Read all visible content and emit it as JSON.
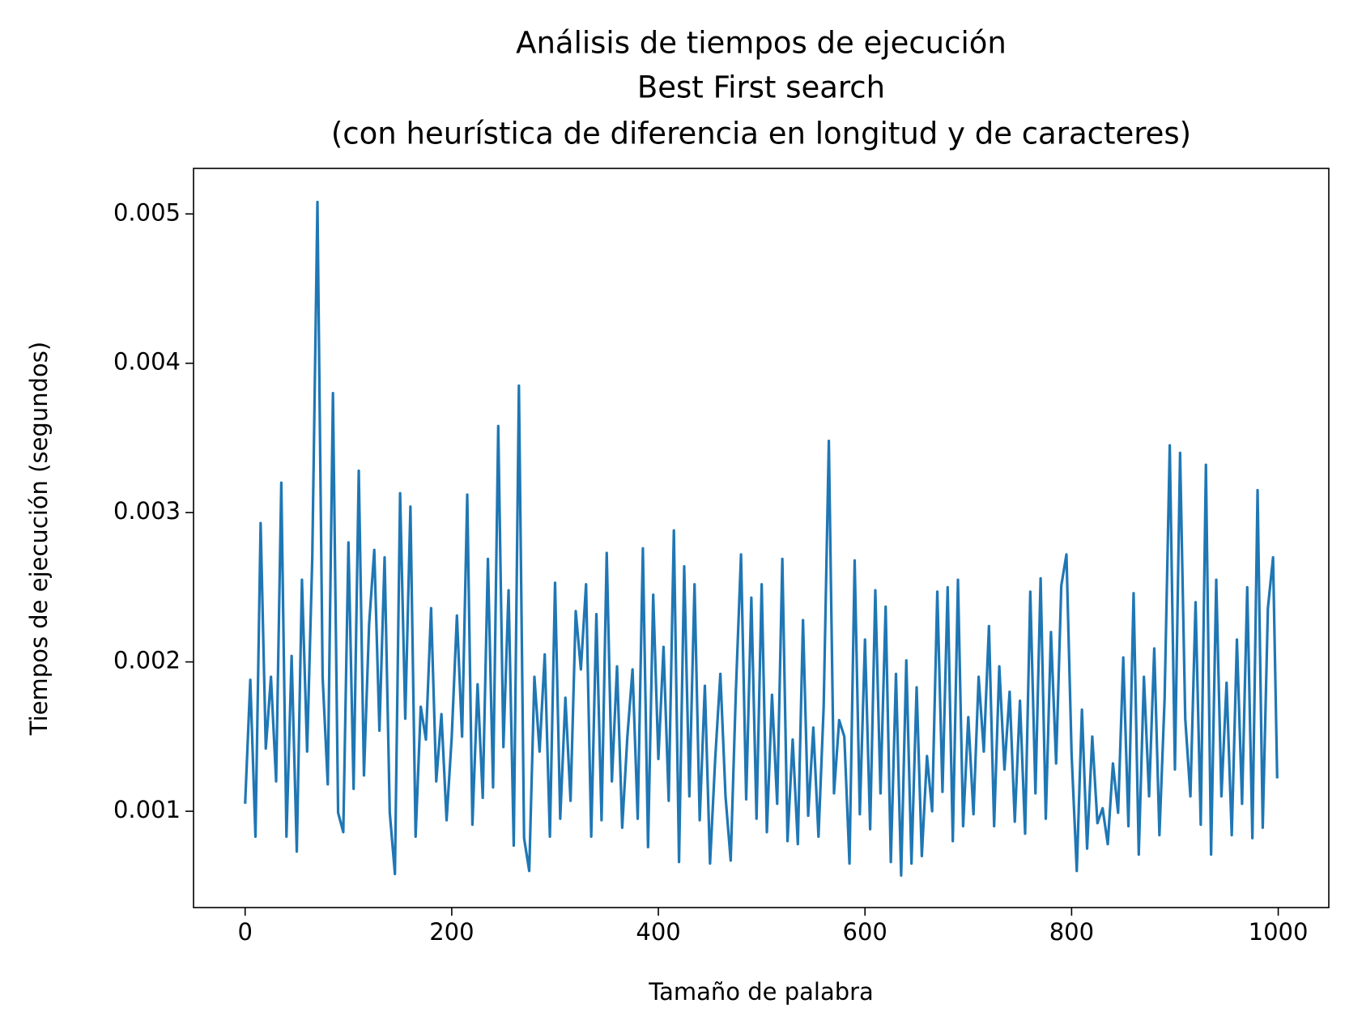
{
  "chart_data": {
    "type": "line",
    "title": [
      "Análisis de tiempos de ejecución",
      "Best First search",
      "(con heurística de diferencia en longitud y de caracteres)"
    ],
    "xlabel": "Tamaño de palabra",
    "ylabel": "Tiempos de ejecución (segundos)",
    "x": [
      0,
      5,
      10,
      15,
      20,
      25,
      30,
      35,
      40,
      45,
      50,
      55,
      60,
      65,
      70,
      75,
      80,
      85,
      90,
      95,
      100,
      105,
      110,
      115,
      120,
      125,
      130,
      135,
      140,
      145,
      150,
      155,
      160,
      165,
      170,
      175,
      180,
      185,
      190,
      195,
      200,
      205,
      210,
      215,
      220,
      225,
      230,
      235,
      240,
      245,
      250,
      255,
      260,
      265,
      270,
      275,
      280,
      285,
      290,
      295,
      300,
      305,
      310,
      315,
      320,
      325,
      330,
      335,
      340,
      345,
      350,
      355,
      360,
      365,
      370,
      375,
      380,
      385,
      390,
      395,
      400,
      405,
      410,
      415,
      420,
      425,
      430,
      435,
      440,
      445,
      450,
      455,
      460,
      465,
      470,
      475,
      480,
      485,
      490,
      495,
      500,
      505,
      510,
      515,
      520,
      525,
      530,
      535,
      540,
      545,
      550,
      555,
      560,
      565,
      570,
      575,
      580,
      585,
      590,
      595,
      600,
      605,
      610,
      615,
      620,
      625,
      630,
      635,
      640,
      645,
      650,
      655,
      660,
      665,
      670,
      675,
      680,
      685,
      690,
      695,
      700,
      705,
      710,
      715,
      720,
      725,
      730,
      735,
      740,
      745,
      750,
      755,
      760,
      765,
      770,
      775,
      780,
      785,
      790,
      795,
      800,
      805,
      810,
      815,
      820,
      825,
      830,
      835,
      840,
      845,
      850,
      855,
      860,
      865,
      870,
      875,
      880,
      885,
      890,
      895,
      900,
      905,
      910,
      915,
      920,
      925,
      930,
      935,
      940,
      945,
      950,
      955,
      960,
      965,
      970,
      975,
      980,
      985,
      990,
      995,
      999
    ],
    "series": [
      {
        "name": "tiempos",
        "color": "#1f77b4",
        "values": [
          0.00105,
          0.00188,
          0.00083,
          0.00293,
          0.00142,
          0.0019,
          0.0012,
          0.0032,
          0.00083,
          0.00204,
          0.00073,
          0.00255,
          0.0014,
          0.0027,
          0.00508,
          0.0019,
          0.00118,
          0.0038,
          0.00099,
          0.00086,
          0.0028,
          0.00115,
          0.00328,
          0.00124,
          0.00225,
          0.00275,
          0.00154,
          0.0027,
          0.00099,
          0.00058,
          0.00313,
          0.00162,
          0.00304,
          0.00083,
          0.0017,
          0.00148,
          0.00236,
          0.0012,
          0.00165,
          0.00094,
          0.0015,
          0.00231,
          0.0015,
          0.00312,
          0.00091,
          0.00185,
          0.00109,
          0.00269,
          0.00116,
          0.00358,
          0.00143,
          0.00248,
          0.00077,
          0.00385,
          0.00082,
          0.0006,
          0.0019,
          0.0014,
          0.00205,
          0.00083,
          0.00253,
          0.00095,
          0.00176,
          0.00107,
          0.00234,
          0.00195,
          0.00252,
          0.00083,
          0.00232,
          0.00094,
          0.00273,
          0.0012,
          0.00197,
          0.00089,
          0.0015,
          0.00195,
          0.00095,
          0.00276,
          0.00076,
          0.00245,
          0.00135,
          0.0021,
          0.00107,
          0.00288,
          0.00066,
          0.00264,
          0.0011,
          0.00252,
          0.00094,
          0.00184,
          0.00065,
          0.00135,
          0.00192,
          0.0011,
          0.00067,
          0.0018,
          0.00272,
          0.00108,
          0.00243,
          0.00095,
          0.00252,
          0.00086,
          0.00178,
          0.00105,
          0.00269,
          0.0008,
          0.00148,
          0.00078,
          0.00228,
          0.00097,
          0.00156,
          0.00083,
          0.0017,
          0.00348,
          0.00112,
          0.00161,
          0.0015,
          0.00065,
          0.00268,
          0.00098,
          0.00215,
          0.00088,
          0.00248,
          0.00112,
          0.00237,
          0.00066,
          0.00192,
          0.00057,
          0.00201,
          0.00065,
          0.00183,
          0.0007,
          0.00137,
          0.001,
          0.00247,
          0.00113,
          0.0025,
          0.0008,
          0.00255,
          0.0009,
          0.00163,
          0.00098,
          0.0019,
          0.0014,
          0.00224,
          0.0009,
          0.00197,
          0.00128,
          0.0018,
          0.00093,
          0.00174,
          0.00085,
          0.00247,
          0.00112,
          0.00256,
          0.00095,
          0.0022,
          0.00132,
          0.00251,
          0.00272,
          0.00138,
          0.0006,
          0.00168,
          0.00075,
          0.0015,
          0.00092,
          0.00102,
          0.00078,
          0.00132,
          0.00099,
          0.00203,
          0.0009,
          0.00246,
          0.00071,
          0.0019,
          0.0011,
          0.00209,
          0.00084,
          0.00175,
          0.00345,
          0.00128,
          0.0034,
          0.00162,
          0.0011,
          0.0024,
          0.00091,
          0.00332,
          0.00071,
          0.00255,
          0.0011,
          0.00186,
          0.00084,
          0.00215,
          0.00105,
          0.0025,
          0.00082,
          0.00315,
          0.00089,
          0.00236,
          0.0027,
          0.00122
        ]
      }
    ],
    "xlim": [
      -49.95,
      1048.95
    ],
    "xticks": [
      0,
      200,
      400,
      600,
      800,
      1000
    ],
    "ylim": [
      0.000355,
      0.005305
    ],
    "yticks": [
      0.001,
      0.002,
      0.003,
      0.004,
      0.005
    ],
    "grid": false
  }
}
